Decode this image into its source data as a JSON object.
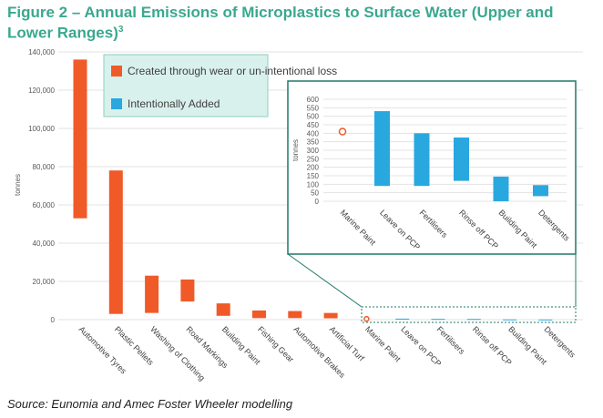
{
  "figure": {
    "title": "Figure 2 – Annual Emissions of Microplastics to Surface Water (Upper and Lower Ranges)",
    "superscript": "3",
    "source": "Source: Eunomia and Amec Foster Wheeler modelling"
  },
  "colors": {
    "wear": "#f05a28",
    "intentional": "#29a8e0",
    "inset_border": "#1f7a67",
    "legend_bg": "#d9f1ec"
  },
  "chart_data": [
    {
      "type": "bar",
      "subtype": "floating-range",
      "ylabel": "tonnes",
      "ylim": [
        0,
        140000
      ],
      "yticks": [
        0,
        20000,
        40000,
        60000,
        80000,
        100000,
        120000,
        140000
      ],
      "ytick_labels": [
        "0",
        "20,000",
        "40,000",
        "60,000",
        "80,000",
        "100,000",
        "120,000",
        "140,000"
      ],
      "legend": [
        "Created through wear or un-intentional loss",
        "Intentionally Added"
      ],
      "categories": [
        "Automotive Tyres",
        "Plastic Pellets",
        "Washing of Clothing",
        "Road Markings",
        "Building Paint",
        "Fishing Gear",
        "Automotive Brakes",
        "Artificial Turf",
        "Marine Paint",
        "Leave on PCP",
        "Fertilisers",
        "Rinse off PCP",
        "Building Paint",
        "Detergents"
      ],
      "series": [
        {
          "name": "Created through wear or un-intentional loss",
          "ranges": [
            [
              53000,
              136000
            ],
            [
              3000,
              78000
            ],
            [
              3500,
              23000
            ],
            [
              9500,
              21000
            ],
            [
              2000,
              8500
            ],
            [
              800,
              4800
            ],
            [
              800,
              4500
            ],
            [
              700,
              3500
            ],
            null,
            null,
            null,
            null,
            null,
            null
          ]
        },
        {
          "name": "Intentionally Added",
          "ranges": [
            null,
            null,
            null,
            null,
            null,
            null,
            null,
            null,
            null,
            [
              90,
              530
            ],
            [
              90,
              400
            ],
            [
              120,
              375
            ],
            [
              0,
              145
            ],
            [
              30,
              95
            ]
          ]
        }
      ],
      "points": [
        {
          "category": "Marine Paint",
          "value": 410
        }
      ]
    },
    {
      "type": "bar",
      "subtype": "floating-range",
      "ylabel": "tonnes",
      "ylim": [
        0,
        600
      ],
      "yticks": [
        0,
        50,
        100,
        150,
        200,
        250,
        300,
        350,
        400,
        450,
        500,
        550,
        600
      ],
      "ytick_labels": [
        "0",
        "50",
        "100",
        "150",
        "200",
        "250",
        "300",
        "350",
        "400",
        "450",
        "500",
        "550",
        "600"
      ],
      "categories": [
        "Marine Paint",
        "Leave on PCP",
        "Fertilisers",
        "Rinse off PCP",
        "Building Paint",
        "Detergents"
      ],
      "series": [
        {
          "name": "Intentionally Added",
          "ranges": [
            null,
            [
              90,
              530
            ],
            [
              90,
              400
            ],
            [
              120,
              375
            ],
            [
              0,
              145
            ],
            [
              30,
              95
            ]
          ]
        }
      ],
      "points": [
        {
          "category": "Marine Paint",
          "value": 410
        }
      ]
    }
  ]
}
